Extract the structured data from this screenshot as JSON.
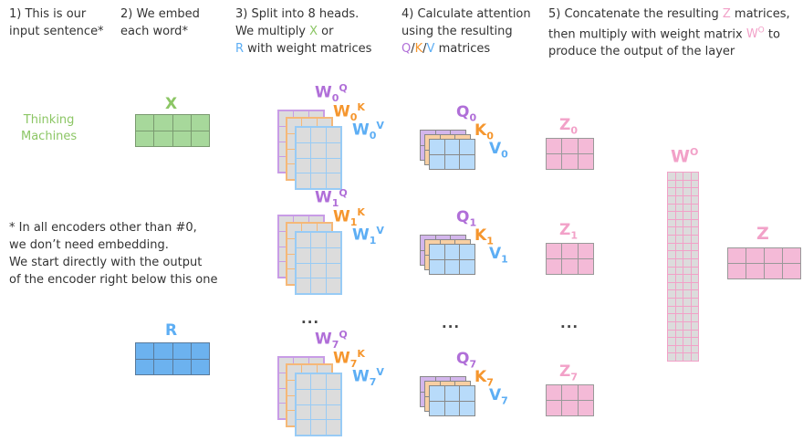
{
  "headers": [
    {
      "lines": [
        "1) This is our",
        "input sentence*"
      ]
    },
    {
      "lines": [
        "2) We embed",
        "each word*"
      ]
    },
    {
      "line1": "3) Split into 8 heads.",
      "line2_pre": "We multiply ",
      "line2_x": "X",
      "line2_post": " or",
      "line3_r": "R",
      "line3_post": " with weight matrices"
    },
    {
      "line1": "4) Calculate attention",
      "line2": "using the resulting",
      "q": "Q",
      "k": "K",
      "v": "V",
      "line3_post": " matrices",
      "slash": "/"
    },
    {
      "line1_pre": "5) Concatenate the resulting ",
      "line1_z": "Z",
      "line1_post": " matrices,",
      "line2_pre": "then multiply with weight matrix ",
      "line2_w": "W",
      "line2_sup": "O",
      "line2_post": " to",
      "line3": "produce the output of the layer"
    }
  ],
  "sentence": [
    "Thinking",
    "Machines"
  ],
  "embedding_label": "X",
  "encoder_input_label": "R",
  "note": [
    "* In all encoders other than #0,",
    "we don’t need embedding.",
    "We start directly with the output",
    "of the encoder right below this one"
  ],
  "heads": [
    {
      "index": "0",
      "wq": "W",
      "wk": "W",
      "wv": "W",
      "q": "Q",
      "k": "K",
      "v": "V",
      "z": "Z",
      "sq": "Q",
      "sk": "K",
      "sv": "V"
    },
    {
      "index": "1",
      "wq": "W",
      "wk": "W",
      "wv": "W",
      "q": "Q",
      "k": "K",
      "v": "V",
      "z": "Z",
      "sq": "Q",
      "sk": "K",
      "sv": "V"
    },
    {
      "index": "7",
      "wq": "W",
      "wk": "W",
      "wv": "W",
      "q": "Q",
      "k": "K",
      "v": "V",
      "z": "Z",
      "sq": "Q",
      "sk": "K",
      "sv": "V"
    }
  ],
  "ellipsis": "...",
  "output_weight": {
    "label": "W",
    "sup": "O"
  },
  "output_label": "Z",
  "colors": {
    "green": "#8cc665",
    "purple": "#b06fd8",
    "orange": "#f5962e",
    "blue": "#5daef4",
    "pink": "#f2a1c8",
    "gray": "#dcdcdc"
  }
}
